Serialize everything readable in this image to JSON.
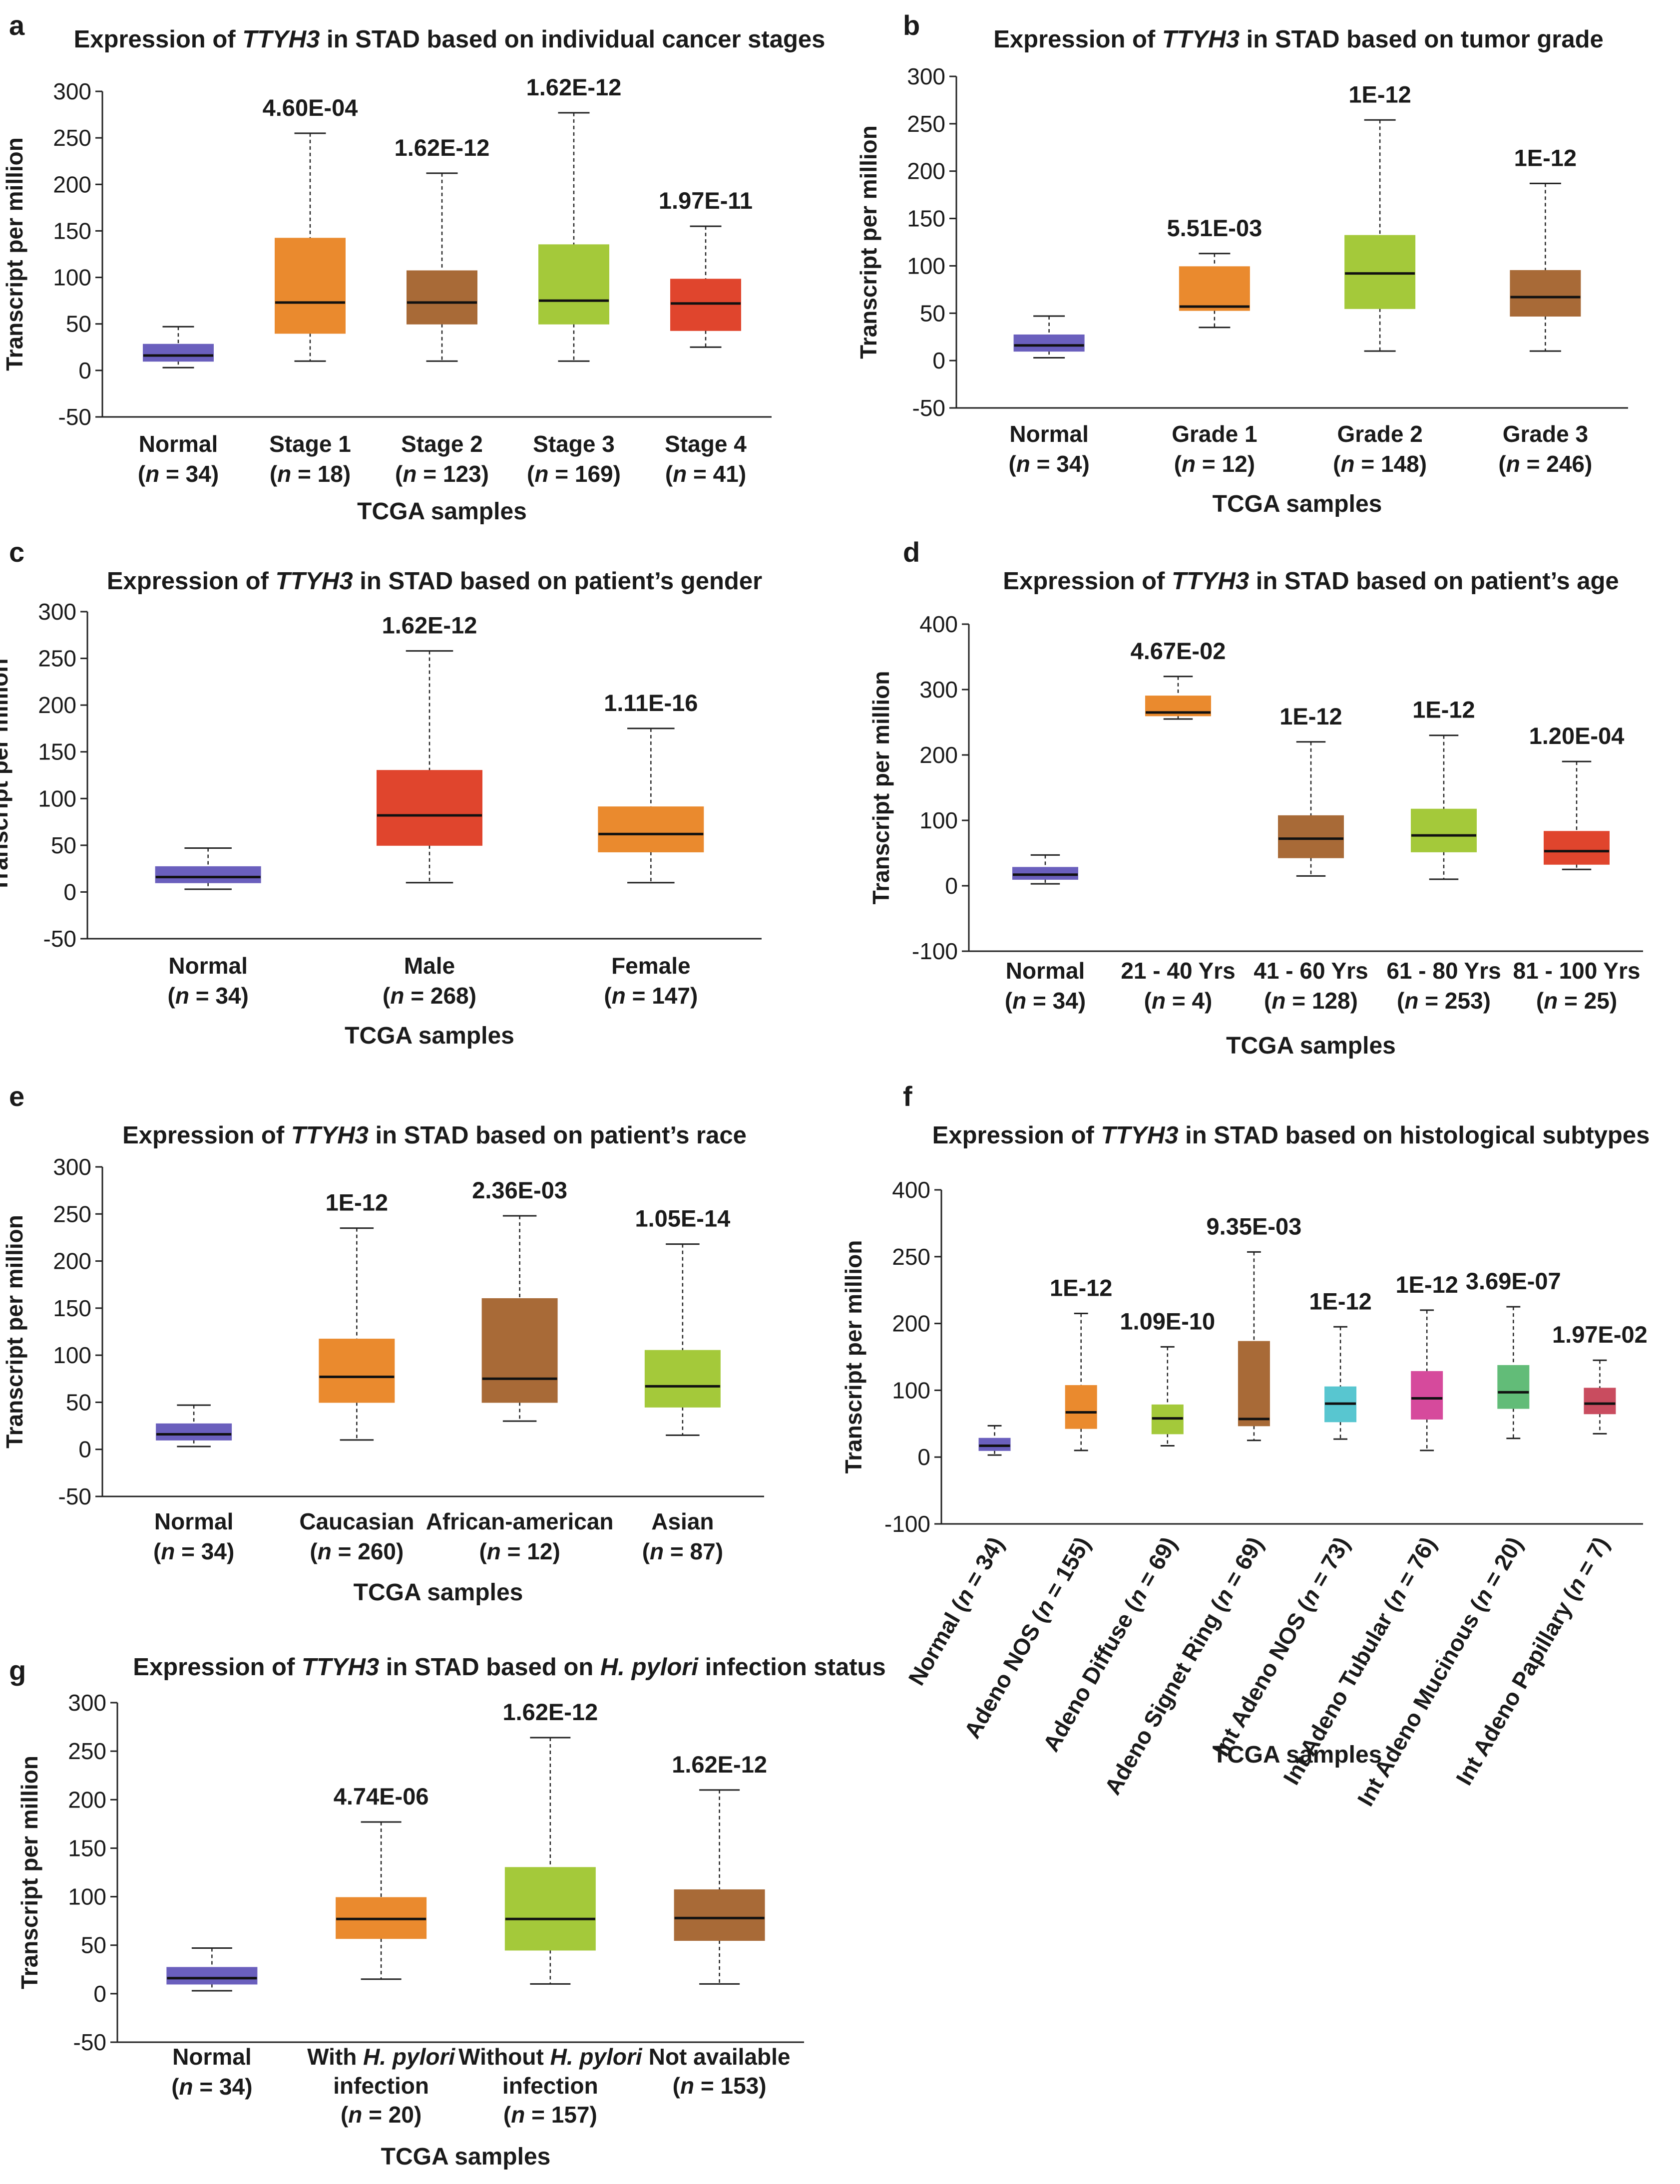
{
  "colors": {
    "normal": "#6a5fbd",
    "orange": "#ea8a2e",
    "brown": "#a86a37",
    "green": "#a4c93a",
    "red": "#e0452d",
    "cyan": "#58c6d0",
    "magenta": "#d64a9c",
    "mint": "#62bc78",
    "rose": "#c94c5f"
  },
  "chart_data": [
    {
      "id": "a",
      "type": "box",
      "title": [
        "Expression  of ",
        "TTYH3",
        " in STAD based on individual cancer stages"
      ],
      "xlabel": "TCGA  samples",
      "ylabel": "Transcript per million",
      "ylim": [
        -50,
        300
      ],
      "yticks": [
        -50,
        0,
        50,
        100,
        150,
        200,
        250,
        300
      ],
      "boxes": [
        {
          "label": "Normal",
          "n": "34",
          "color": "normal",
          "min": 3,
          "q1": 10,
          "median": 16,
          "q3": 28,
          "max": 47,
          "pvalue": ""
        },
        {
          "label": "Stage 1",
          "n": "18",
          "color": "orange",
          "min": 10,
          "q1": 40,
          "median": 73,
          "q3": 142,
          "max": 255,
          "pvalue": "4.60E-04"
        },
        {
          "label": "Stage 2",
          "n": "123",
          "color": "brown",
          "min": 10,
          "q1": 50,
          "median": 73,
          "q3": 107,
          "max": 212,
          "pvalue": "1.62E-12"
        },
        {
          "label": "Stage 3",
          "n": "169",
          "color": "green",
          "min": 10,
          "q1": 50,
          "median": 75,
          "q3": 135,
          "max": 277,
          "pvalue": "1.62E-12"
        },
        {
          "label": "Stage 4",
          "n": "41",
          "color": "red",
          "min": 25,
          "q1": 43,
          "median": 72,
          "q3": 98,
          "max": 155,
          "pvalue": "1.97E-11"
        }
      ]
    },
    {
      "id": "b",
      "type": "box",
      "title": [
        "Expression  of ",
        "TTYH3",
        " in STAD based on tumor grade"
      ],
      "xlabel": "TCGA  samples",
      "ylabel": "Transcript per million",
      "ylim": [
        -50,
        300
      ],
      "yticks": [
        -50,
        0,
        50,
        100,
        150,
        200,
        250,
        300
      ],
      "boxes": [
        {
          "label": "Normal",
          "n": "34",
          "color": "normal",
          "min": 3,
          "q1": 10,
          "median": 16,
          "q3": 27,
          "max": 47,
          "pvalue": ""
        },
        {
          "label": "Grade 1",
          "n": "12",
          "color": "orange",
          "min": 35,
          "q1": 53,
          "median": 57,
          "q3": 99,
          "max": 113,
          "pvalue": "5.51E-03"
        },
        {
          "label": "Grade 2",
          "n": "148",
          "color": "green",
          "min": 10,
          "q1": 55,
          "median": 92,
          "q3": 132,
          "max": 254,
          "pvalue": "1E-12"
        },
        {
          "label": "Grade 3",
          "n": "246",
          "color": "brown",
          "min": 10,
          "q1": 47,
          "median": 67,
          "q3": 95,
          "max": 187,
          "pvalue": "1E-12"
        }
      ]
    },
    {
      "id": "c",
      "type": "box",
      "title": [
        "Expression  of ",
        "TTYH3",
        " in STAD based on patient’s gender"
      ],
      "xlabel": "TCGA  samples",
      "ylabel": "Transcript per million",
      "ylim": [
        -50,
        300
      ],
      "yticks": [
        -50,
        0,
        50,
        100,
        150,
        200,
        250,
        300
      ],
      "boxes": [
        {
          "label": "Normal",
          "n": "34",
          "color": "normal",
          "min": 3,
          "q1": 10,
          "median": 16,
          "q3": 27,
          "max": 47,
          "pvalue": ""
        },
        {
          "label": "Male",
          "n": "268",
          "color": "red",
          "min": 10,
          "q1": 50,
          "median": 82,
          "q3": 130,
          "max": 258,
          "pvalue": "1.62E-12"
        },
        {
          "label": "Female",
          "n": "147",
          "color": "orange",
          "min": 10,
          "q1": 43,
          "median": 62,
          "q3": 91,
          "max": 175,
          "pvalue": "1.11E-16"
        }
      ]
    },
    {
      "id": "d",
      "type": "box",
      "title": [
        "Expression  of ",
        "TTYH3",
        " in STAD based on patient’s age"
      ],
      "xlabel": "TCGA  samples",
      "ylabel": "Transcript per million",
      "ylim": [
        -100,
        400
      ],
      "yticks": [
        -100,
        0,
        100,
        200,
        300,
        400
      ],
      "boxes": [
        {
          "label": "Normal",
          "n": "34",
          "color": "normal",
          "min": 3,
          "q1": 10,
          "median": 17,
          "q3": 28,
          "max": 47,
          "pvalue": ""
        },
        {
          "label": "21 - 40 Yrs",
          "n": "4",
          "color": "orange",
          "min": 255,
          "q1": 260,
          "median": 265,
          "q3": 290,
          "max": 320,
          "pvalue": "4.67E-02"
        },
        {
          "label": "41 - 60 Yrs",
          "n": "128",
          "color": "brown",
          "min": 15,
          "q1": 43,
          "median": 72,
          "q3": 107,
          "max": 220,
          "pvalue": "1E-12"
        },
        {
          "label": "61 - 80 Yrs",
          "n": "253",
          "color": "green",
          "min": 10,
          "q1": 52,
          "median": 77,
          "q3": 117,
          "max": 230,
          "pvalue": "1E-12"
        },
        {
          "label": "81 - 100 Yrs",
          "n": "25",
          "color": "red",
          "min": 25,
          "q1": 33,
          "median": 53,
          "q3": 83,
          "max": 190,
          "pvalue": "1.20E-04"
        }
      ]
    },
    {
      "id": "e",
      "type": "box",
      "title": [
        "Expression  of ",
        "TTYH3",
        " in STAD based on patient’s race"
      ],
      "xlabel": "TCGA  samples",
      "ylabel": "Transcript per million",
      "ylim": [
        -50,
        300
      ],
      "yticks": [
        -50,
        0,
        50,
        100,
        150,
        200,
        250,
        300
      ],
      "boxes": [
        {
          "label": "Normal",
          "n": "34",
          "color": "normal",
          "min": 3,
          "q1": 10,
          "median": 16,
          "q3": 27,
          "max": 47,
          "pvalue": ""
        },
        {
          "label": "Caucasian",
          "n": "260",
          "color": "orange",
          "min": 10,
          "q1": 50,
          "median": 77,
          "q3": 117,
          "max": 235,
          "pvalue": "1E-12"
        },
        {
          "label": "African-american",
          "n": "12",
          "color": "brown",
          "min": 30,
          "q1": 50,
          "median": 75,
          "q3": 160,
          "max": 248,
          "pvalue": "2.36E-03"
        },
        {
          "label": "Asian",
          "n": "87",
          "color": "green",
          "min": 15,
          "q1": 45,
          "median": 67,
          "q3": 105,
          "max": 218,
          "pvalue": "1.05E-14"
        }
      ]
    },
    {
      "id": "f",
      "type": "box",
      "title": [
        "Expression  of ",
        "TTYH3",
        " in STAD based on histological subtypes"
      ],
      "xlabel": "TCGA  samples",
      "ylabel": "Transcript per million",
      "ylim": [
        -100,
        400
      ],
      "yticks": [
        -100,
        0,
        100,
        200,
        250,
        400
      ],
      "rotated_labels": true,
      "boxes": [
        {
          "label": "Normal",
          "n": "34",
          "color": "normal",
          "min": 3,
          "q1": 10,
          "median": 17,
          "q3": 28,
          "max": 47,
          "pvalue": ""
        },
        {
          "label": "Adeno NOS",
          "n": "155",
          "color": "orange",
          "min": 10,
          "q1": 43,
          "median": 67,
          "q3": 107,
          "max": 215,
          "pvalue": "1E-12"
        },
        {
          "label": "Adeno Diffuse",
          "n": "69",
          "color": "green",
          "min": 17,
          "q1": 35,
          "median": 58,
          "q3": 78,
          "max": 165,
          "pvalue": "1.09E-10"
        },
        {
          "label": "Adeno Signet Ring",
          "n": "69",
          "color": "brown",
          "min": 25,
          "q1": 47,
          "median": 57,
          "q3": 173,
          "max": 307,
          "pvalue": "9.35E-03"
        },
        {
          "label": "Int Adeno NOS",
          "n": "73",
          "color": "cyan",
          "min": 27,
          "q1": 53,
          "median": 80,
          "q3": 105,
          "max": 195,
          "pvalue": "1E-12"
        },
        {
          "label": "Int Adeno Tubular",
          "n": "76",
          "color": "magenta",
          "min": 10,
          "q1": 57,
          "median": 88,
          "q3": 128,
          "max": 220,
          "pvalue": "1E-12"
        },
        {
          "label": "Int Adeno Mucinous",
          "n": "20",
          "color": "mint",
          "min": 28,
          "q1": 73,
          "median": 97,
          "q3": 137,
          "max": 225,
          "pvalue": "3.69E-07"
        },
        {
          "label": "Int Adeno Papillary",
          "n": "7",
          "color": "rose",
          "min": 35,
          "q1": 65,
          "median": 80,
          "q3": 103,
          "max": 145,
          "pvalue": "1.97E-02"
        }
      ]
    },
    {
      "id": "g",
      "type": "box",
      "title": [
        "Expression  of ",
        "TTYH3",
        " in STAD based on ",
        "H. pylori",
        " infection status"
      ],
      "xlabel": "TCGA  samples",
      "ylabel": "Transcript per million",
      "ylim": [
        -50,
        300
      ],
      "yticks": [
        -50,
        0,
        50,
        100,
        150,
        200,
        250,
        300
      ],
      "boxes": [
        {
          "label": "Normal",
          "n": "34",
          "color": "normal",
          "min": 3,
          "q1": 10,
          "median": 16,
          "q3": 27,
          "max": 47,
          "pvalue": ""
        },
        {
          "label": [
            "With ",
            "H. pylori",
            "",
            "infection"
          ],
          "n": "20",
          "color": "orange",
          "min": 15,
          "q1": 57,
          "median": 77,
          "q3": 99,
          "max": 177,
          "pvalue": "4.74E-06"
        },
        {
          "label": [
            "Without ",
            "H. pylori",
            "",
            "infection"
          ],
          "n": "157",
          "color": "green",
          "min": 10,
          "q1": 45,
          "median": 77,
          "q3": 130,
          "max": 264,
          "pvalue": "1.62E-12"
        },
        {
          "label": [
            "Not  available"
          ],
          "n": "153",
          "color": "brown",
          "min": 10,
          "q1": 55,
          "median": 78,
          "q3": 107,
          "max": 210,
          "pvalue": "1.62E-12"
        }
      ]
    }
  ]
}
